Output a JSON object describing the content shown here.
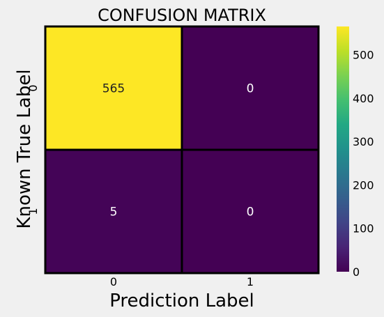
{
  "chart_data": {
    "type": "heatmap",
    "title": "CONFUSION MATRIX",
    "xlabel": "Prediction Label",
    "ylabel": "Known True Label",
    "x_tick_labels": [
      "0",
      "1"
    ],
    "y_tick_labels": [
      "0",
      "1"
    ],
    "matrix": [
      [
        565,
        0
      ],
      [
        5,
        0
      ]
    ],
    "cell_labels": [
      [
        "565",
        "0"
      ],
      [
        "5",
        "0"
      ]
    ],
    "colormap": "viridis",
    "colorbar": {
      "range": [
        0,
        565
      ],
      "ticks": [
        0,
        100,
        200,
        300,
        400,
        500
      ],
      "tick_labels": [
        "0",
        "100",
        "200",
        "300",
        "400",
        "500"
      ]
    },
    "cell_border_color": "#000000",
    "background_color": "#f0f0f0"
  }
}
